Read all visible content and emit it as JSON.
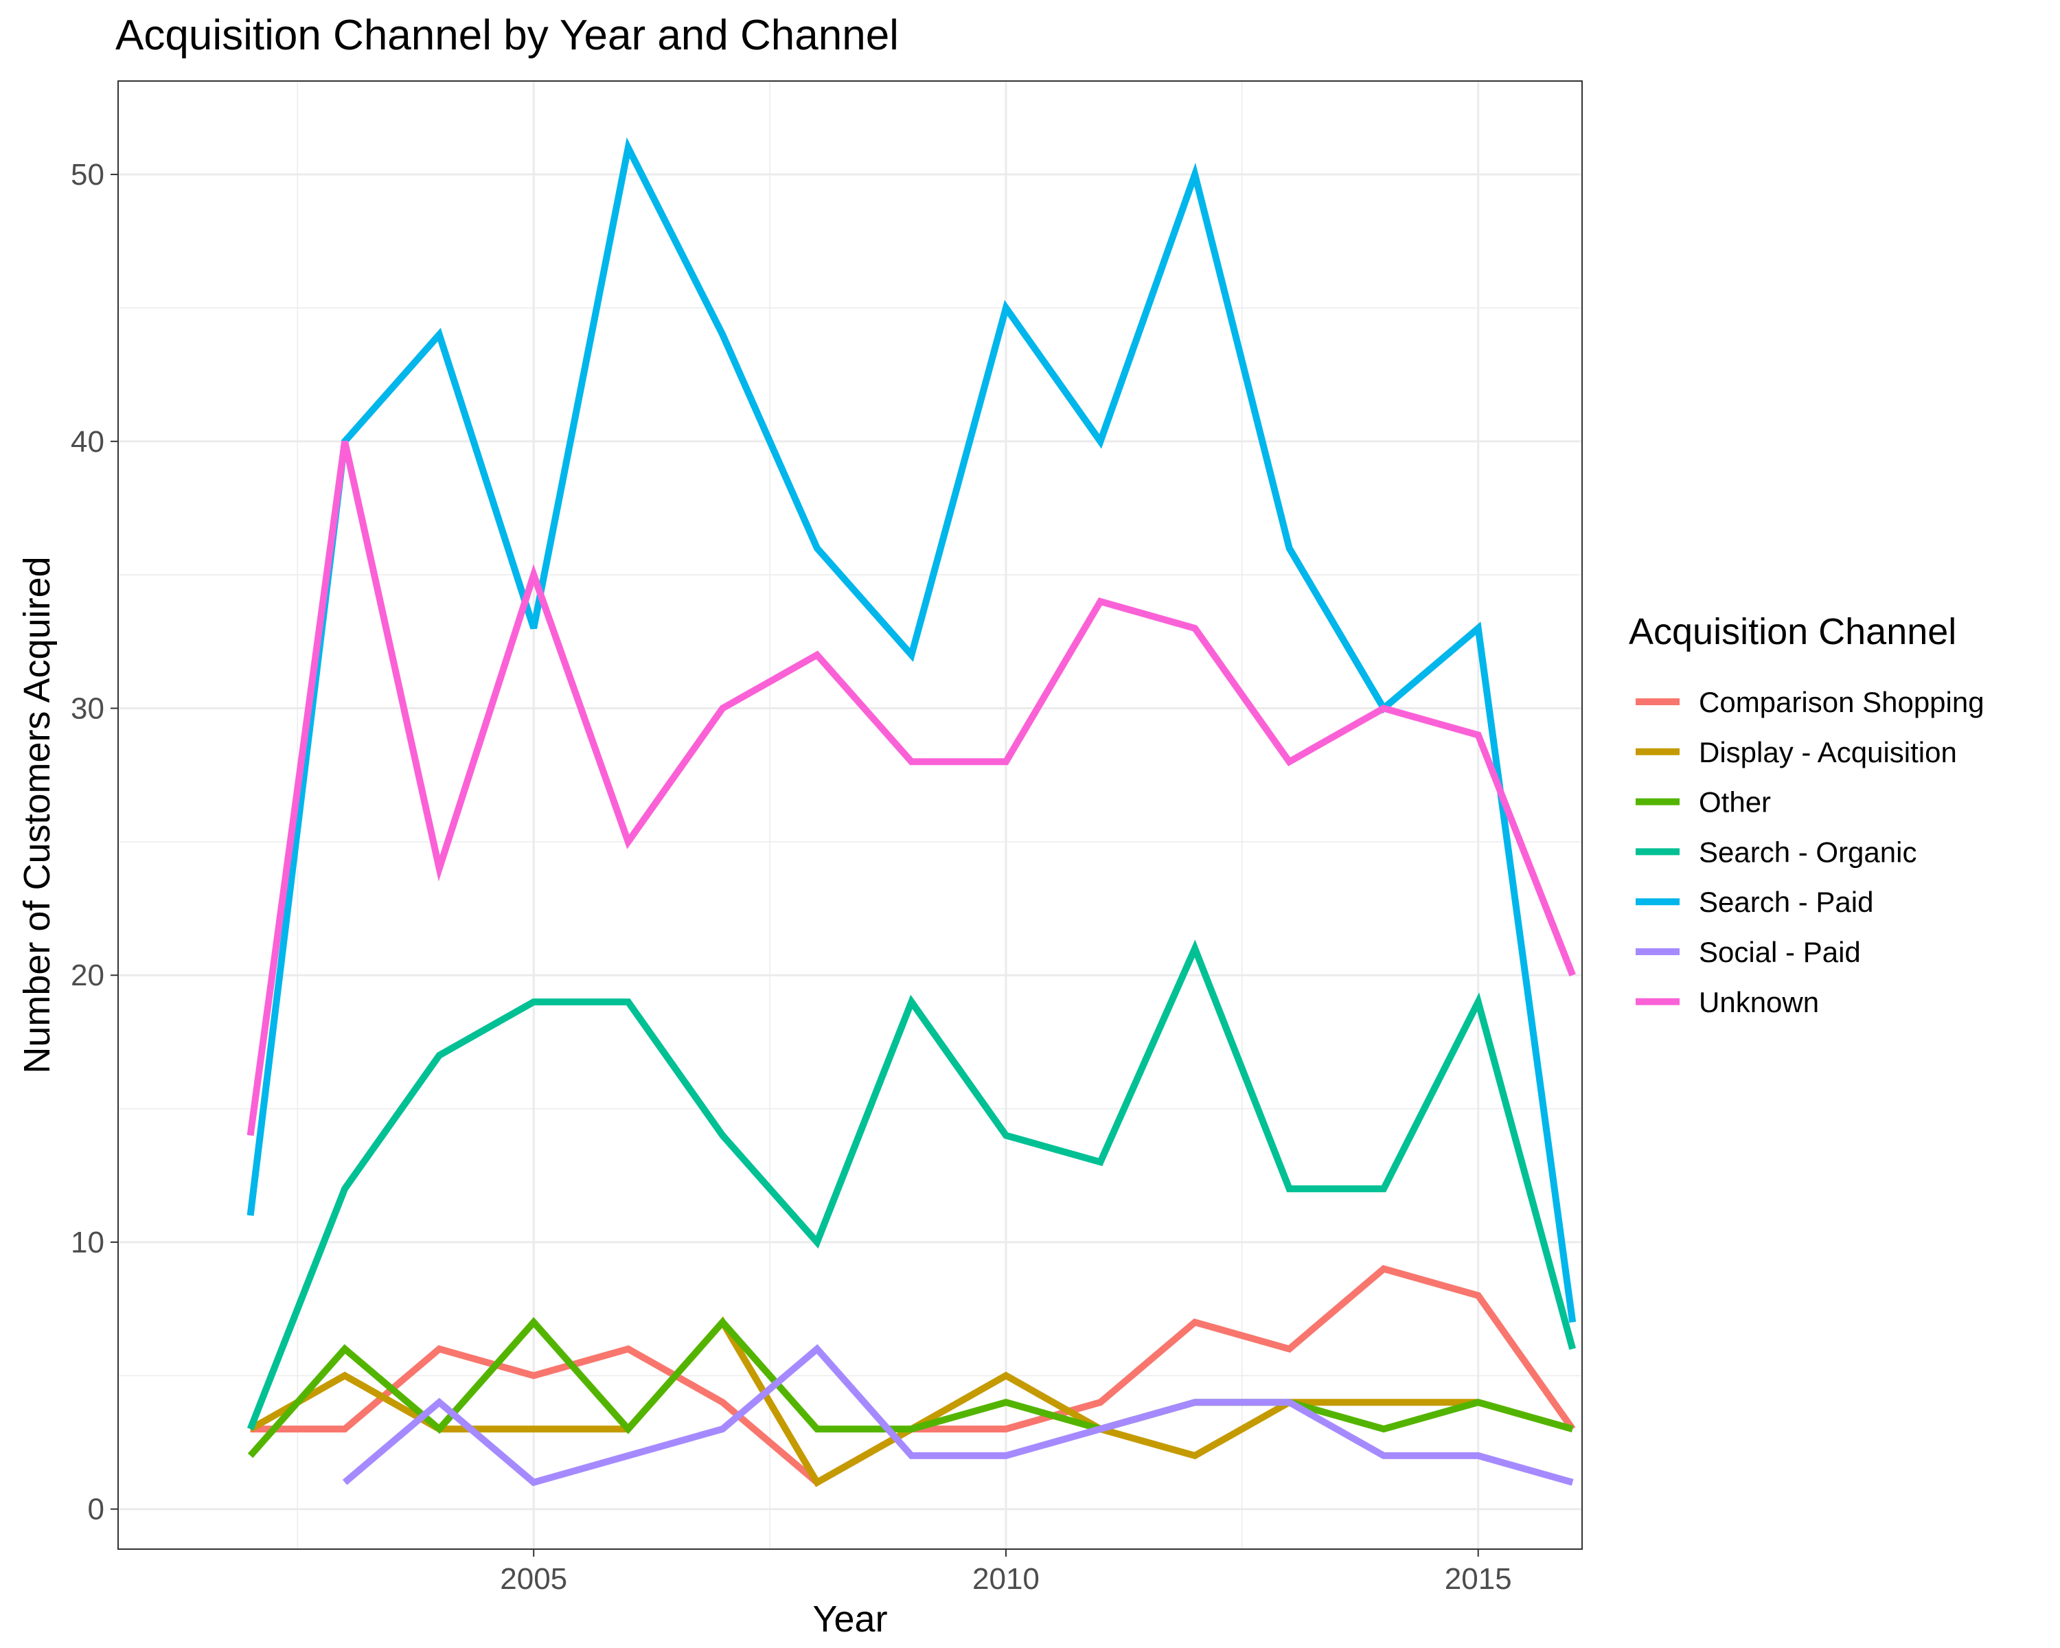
{
  "chart_data": {
    "type": "line",
    "title": "Acquisition Channel by Year and Channel",
    "xlabel": "Year",
    "ylabel": "Number of Customers Acquired",
    "x": [
      2002,
      2003,
      2004,
      2005,
      2006,
      2007,
      2008,
      2009,
      2010,
      2011,
      2012,
      2013,
      2014,
      2015,
      2016
    ],
    "xlim": [
      2000.6,
      2016.1
    ],
    "ylim": [
      -1.5,
      53.5
    ],
    "xticks": [
      2005,
      2010,
      2015
    ],
    "xtick_labels": [
      "2005",
      "2010",
      "2015"
    ],
    "yticks": [
      0,
      10,
      20,
      30,
      40,
      50
    ],
    "ytick_labels": [
      "0",
      "10",
      "20",
      "30",
      "40",
      "50"
    ],
    "grid": true,
    "legend_title": "Acquisition Channel",
    "legend_position": "right",
    "series": [
      {
        "name": "Comparison Shopping",
        "color": "#F8766D",
        "values": [
          3,
          3,
          6,
          5,
          6,
          4,
          1,
          3,
          3,
          4,
          7,
          6,
          9,
          8,
          3
        ]
      },
      {
        "name": "Display - Acquisition",
        "color": "#C49A00",
        "values": [
          3,
          5,
          3,
          3,
          3,
          7,
          1,
          3,
          5,
          3,
          2,
          4,
          4,
          4,
          3
        ]
      },
      {
        "name": "Other",
        "color": "#53B400",
        "values": [
          2,
          6,
          3,
          7,
          3,
          7,
          3,
          3,
          4,
          3,
          4,
          4,
          3,
          4,
          3
        ]
      },
      {
        "name": "Search - Organic",
        "color": "#00C094",
        "values": [
          3,
          12,
          17,
          19,
          19,
          14,
          10,
          19,
          14,
          13,
          21,
          12,
          12,
          19,
          6
        ]
      },
      {
        "name": "Search - Paid",
        "color": "#00B6EB",
        "values": [
          11,
          40,
          44,
          33,
          51,
          44,
          36,
          32,
          45,
          40,
          50,
          36,
          30,
          33,
          7
        ]
      },
      {
        "name": "Social - Paid",
        "color": "#A58AFF",
        "values": [
          null,
          1,
          4,
          1,
          2,
          3,
          6,
          2,
          2,
          3,
          4,
          4,
          2,
          2,
          1
        ]
      },
      {
        "name": "Unknown",
        "color": "#FB61D7",
        "values": [
          14,
          40,
          24,
          35,
          25,
          30,
          32,
          28,
          28,
          34,
          33,
          28,
          30,
          29,
          20
        ]
      }
    ]
  }
}
